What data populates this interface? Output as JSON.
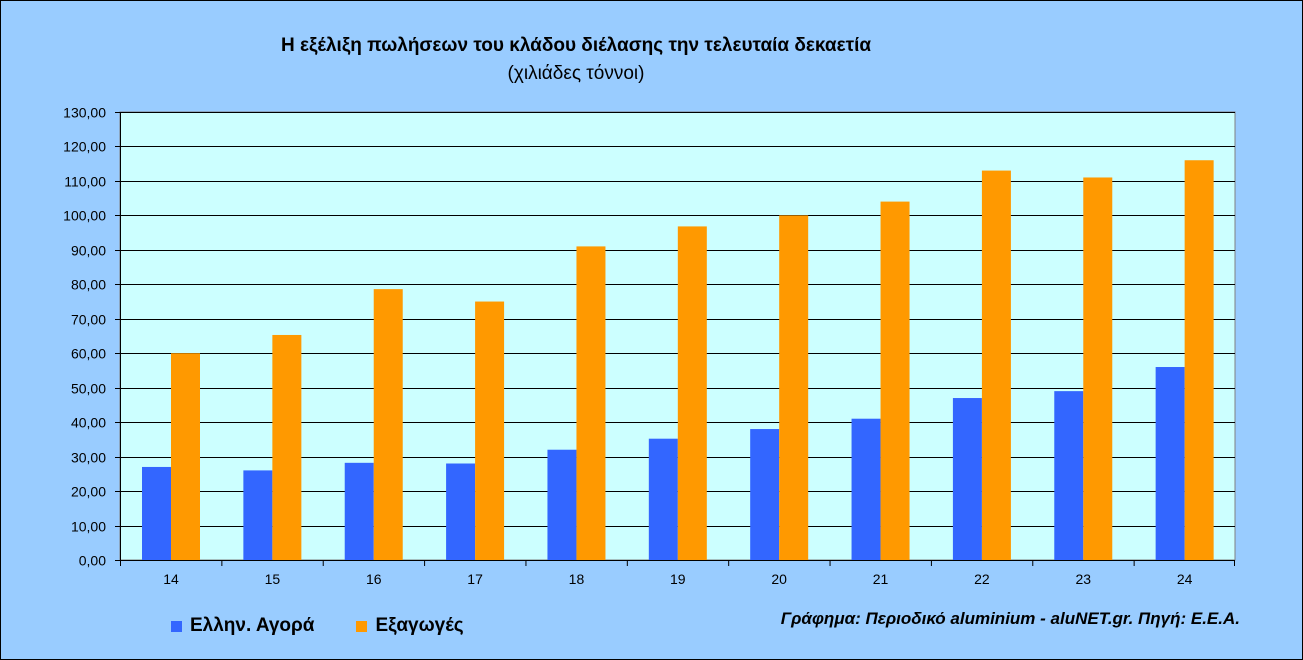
{
  "chart_data": {
    "type": "bar",
    "title": "Η εξέλιξη πωλήσεων του κλάδου διέλασης την τελευταία δεκαετία",
    "subtitle": "(χιλιάδες τόννοι)",
    "categories": [
      "14",
      "15",
      "16",
      "17",
      "18",
      "19",
      "20",
      "21",
      "22",
      "23",
      "24"
    ],
    "series": [
      {
        "name": "Ελλην. Αγορά",
        "color": "#3366ff",
        "values": [
          27,
          26,
          28.2,
          28,
          32,
          35.2,
          38,
          41,
          47,
          49,
          56
        ]
      },
      {
        "name": "Εξαγωγές",
        "color": "#ff9900",
        "values": [
          60,
          65.3,
          78.6,
          75,
          91,
          96.8,
          100,
          104,
          113,
          111,
          116
        ]
      }
    ],
    "ylim": [
      0,
      130
    ],
    "yticks": [
      "0,00",
      "10,00",
      "20,00",
      "30,00",
      "40,00",
      "50,00",
      "60,00",
      "70,00",
      "80,00",
      "90,00",
      "100,00",
      "110,00",
      "120,00",
      "130,00"
    ],
    "grid": true,
    "legend": "bottom-left",
    "plot_background": "#ccffff",
    "page_background": "#99ccff"
  },
  "source": "Γράφημα: Περιοδικό aluminium - aluNET.gr. Πηγή: Ε.Ε.Α."
}
